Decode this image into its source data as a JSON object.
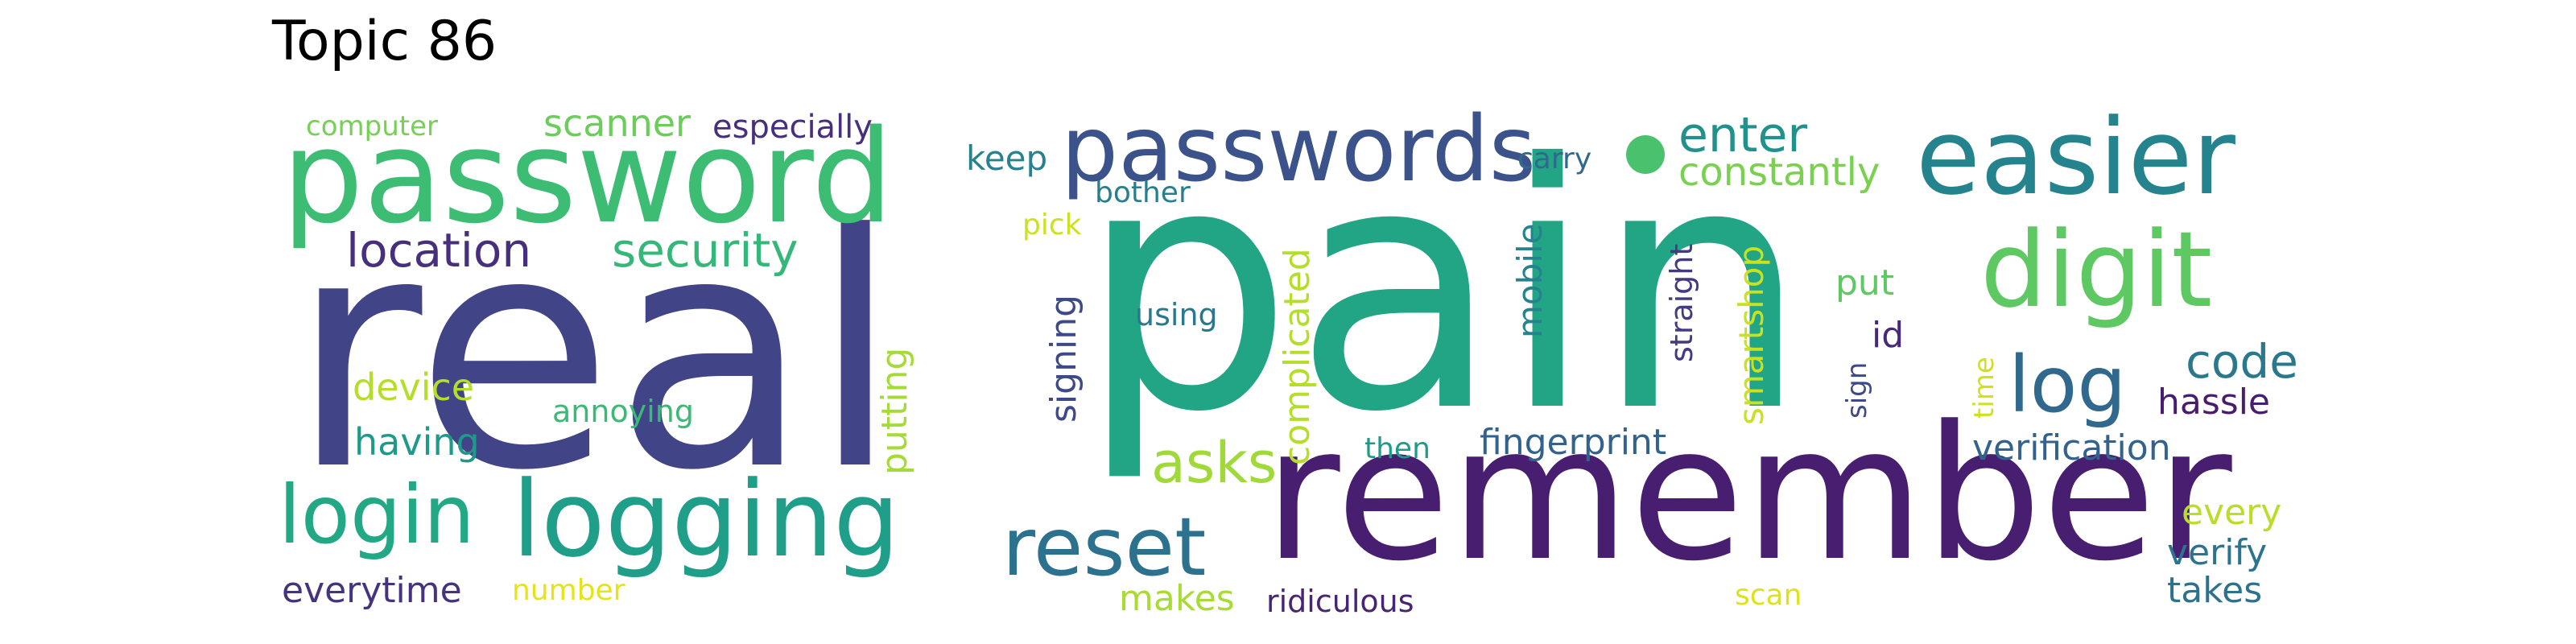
{
  "title": "Topic 86",
  "words": [
    {
      "text": "pain",
      "color": "#21a585"
    },
    {
      "text": "real",
      "color": "#414487"
    },
    {
      "text": "remember",
      "color": "#481f70"
    },
    {
      "text": "password",
      "color": "#3dbc74"
    },
    {
      "text": "passwords",
      "color": "#3b528b"
    },
    {
      "text": "easier",
      "color": "#25838e"
    },
    {
      "text": "digit",
      "color": "#5ec962"
    },
    {
      "text": "logging",
      "color": "#1f9e89"
    },
    {
      "text": "login",
      "color": "#22a884"
    },
    {
      "text": "reset",
      "color": "#2c728e"
    },
    {
      "text": "log",
      "color": "#31688e"
    },
    {
      "text": "location",
      "color": "#46307e"
    },
    {
      "text": "security",
      "color": "#35b779"
    },
    {
      "text": "asks",
      "color": "#a0da39"
    },
    {
      "text": "code",
      "color": "#2a788e"
    },
    {
      "text": "enter",
      "color": "#21918c"
    },
    {
      "text": "constantly",
      "color": "#7ad151"
    },
    {
      "text": "scanner",
      "color": "#6ccd5a"
    },
    {
      "text": "especially",
      "color": "#472f7d"
    },
    {
      "text": "computer",
      "color": "#75d054"
    },
    {
      "text": "keep",
      "color": "#26828e"
    },
    {
      "text": "bother",
      "color": "#277f8e"
    },
    {
      "text": "carry",
      "color": "#31688e"
    },
    {
      "text": "pick",
      "color": "#cde11d"
    },
    {
      "text": "using",
      "color": "#2a788e"
    },
    {
      "text": "signing",
      "color": "#3e4989"
    },
    {
      "text": "putting",
      "color": "#a5db36"
    },
    {
      "text": "complicated",
      "color": "#b5de2b"
    },
    {
      "text": "mobile",
      "color": "#25838e"
    },
    {
      "text": "straight",
      "color": "#443983"
    },
    {
      "text": "smartshop",
      "color": "#cae11f"
    },
    {
      "text": "put",
      "color": "#5ec962"
    },
    {
      "text": "id",
      "color": "#482878"
    },
    {
      "text": "sign",
      "color": "#3e4989"
    },
    {
      "text": "time",
      "color": "#d0e11c"
    },
    {
      "text": "hassle",
      "color": "#481c6e"
    },
    {
      "text": "device",
      "color": "#b5de2b"
    },
    {
      "text": "annoying",
      "color": "#3aba76"
    },
    {
      "text": "having",
      "color": "#1f9a8a"
    },
    {
      "text": "fingerprint",
      "color": "#33638d"
    },
    {
      "text": "then",
      "color": "#1e9b8a"
    },
    {
      "text": "verification",
      "color": "#33638d"
    },
    {
      "text": "every",
      "color": "#bade28"
    },
    {
      "text": "verify",
      "color": "#2c738e"
    },
    {
      "text": "takes",
      "color": "#2c728e"
    },
    {
      "text": "everytime",
      "color": "#46337f"
    },
    {
      "text": "number",
      "color": "#e5e419"
    },
    {
      "text": "makes",
      "color": "#a8db34"
    },
    {
      "text": "ridiculous",
      "color": "#482475"
    },
    {
      "text": "scan",
      "color": "#dde318"
    }
  ],
  "dot_color": "#4ac16d"
}
